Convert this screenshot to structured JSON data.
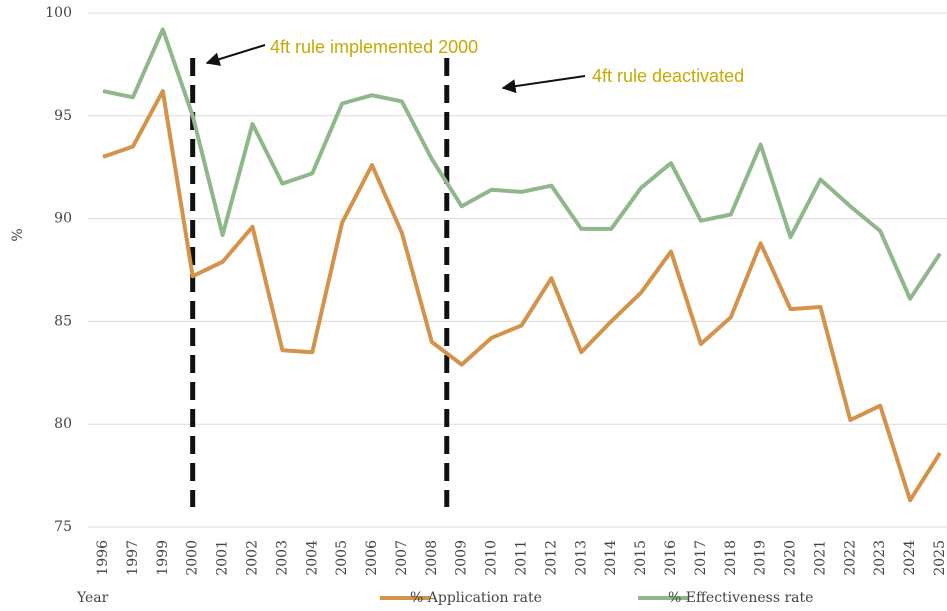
{
  "chart_data": {
    "type": "line",
    "y_label": "%",
    "x_label": "Year",
    "categories": [
      "1996",
      "1997",
      "1999",
      "2000",
      "2001",
      "2002",
      "2003",
      "2004",
      "2005",
      "2006",
      "2007",
      "2008",
      "2009",
      "2010",
      "2011",
      "2012",
      "2013",
      "2014",
      "2015",
      "2016",
      "2017",
      "2018",
      "2019",
      "2020",
      "2021",
      "2022",
      "2023",
      "2024",
      "2025"
    ],
    "series": [
      {
        "name": "% Application rate",
        "color": "#d4924a",
        "values": [
          93.0,
          93.5,
          96.2,
          87.2,
          87.9,
          89.6,
          83.6,
          83.5,
          89.8,
          92.6,
          89.3,
          84.0,
          82.9,
          84.2,
          84.8,
          87.1,
          83.5,
          85.0,
          86.4,
          88.4,
          83.9,
          85.2,
          88.8,
          85.6,
          85.7,
          80.2,
          80.9,
          76.3,
          78.6
        ]
      },
      {
        "name": "% Effectiveness rate",
        "color": "#8fb88a",
        "values": [
          96.2,
          95.9,
          99.2,
          95.0,
          89.2,
          94.6,
          91.7,
          92.2,
          95.6,
          96.0,
          95.7,
          92.9,
          90.6,
          91.4,
          91.3,
          91.6,
          89.5,
          89.5,
          91.5,
          92.7,
          89.9,
          90.2,
          93.6,
          89.1,
          91.9,
          90.6,
          89.4,
          86.1,
          88.3
        ]
      }
    ],
    "annotations": [
      "4ft rule implemented 2000",
      "4ft rule deactivated"
    ],
    "ylim": [
      75,
      100
    ],
    "yticks": [
      75,
      80,
      85,
      90,
      95,
      100
    ],
    "grid": true
  }
}
